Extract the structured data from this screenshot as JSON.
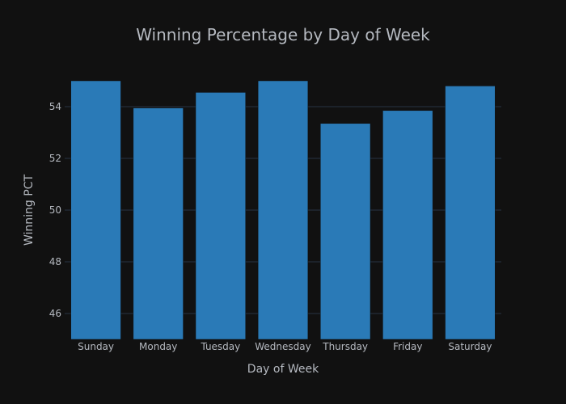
{
  "chart_data": {
    "type": "bar",
    "title": "Winning Percentage by Day of Week",
    "xlabel": "Day of Week",
    "ylabel": "Winning PCT",
    "categories": [
      "Sunday",
      "Monday",
      "Tuesday",
      "Wednesday",
      "Thursday",
      "Friday",
      "Saturday"
    ],
    "values": [
      55.0,
      53.95,
      54.55,
      55.0,
      53.35,
      53.85,
      54.8
    ],
    "ylim": [
      45,
      55
    ],
    "yticks": [
      46,
      48,
      50,
      52,
      54
    ],
    "grid": true,
    "bar_color": "#2a7ab7",
    "background": "#111111"
  }
}
